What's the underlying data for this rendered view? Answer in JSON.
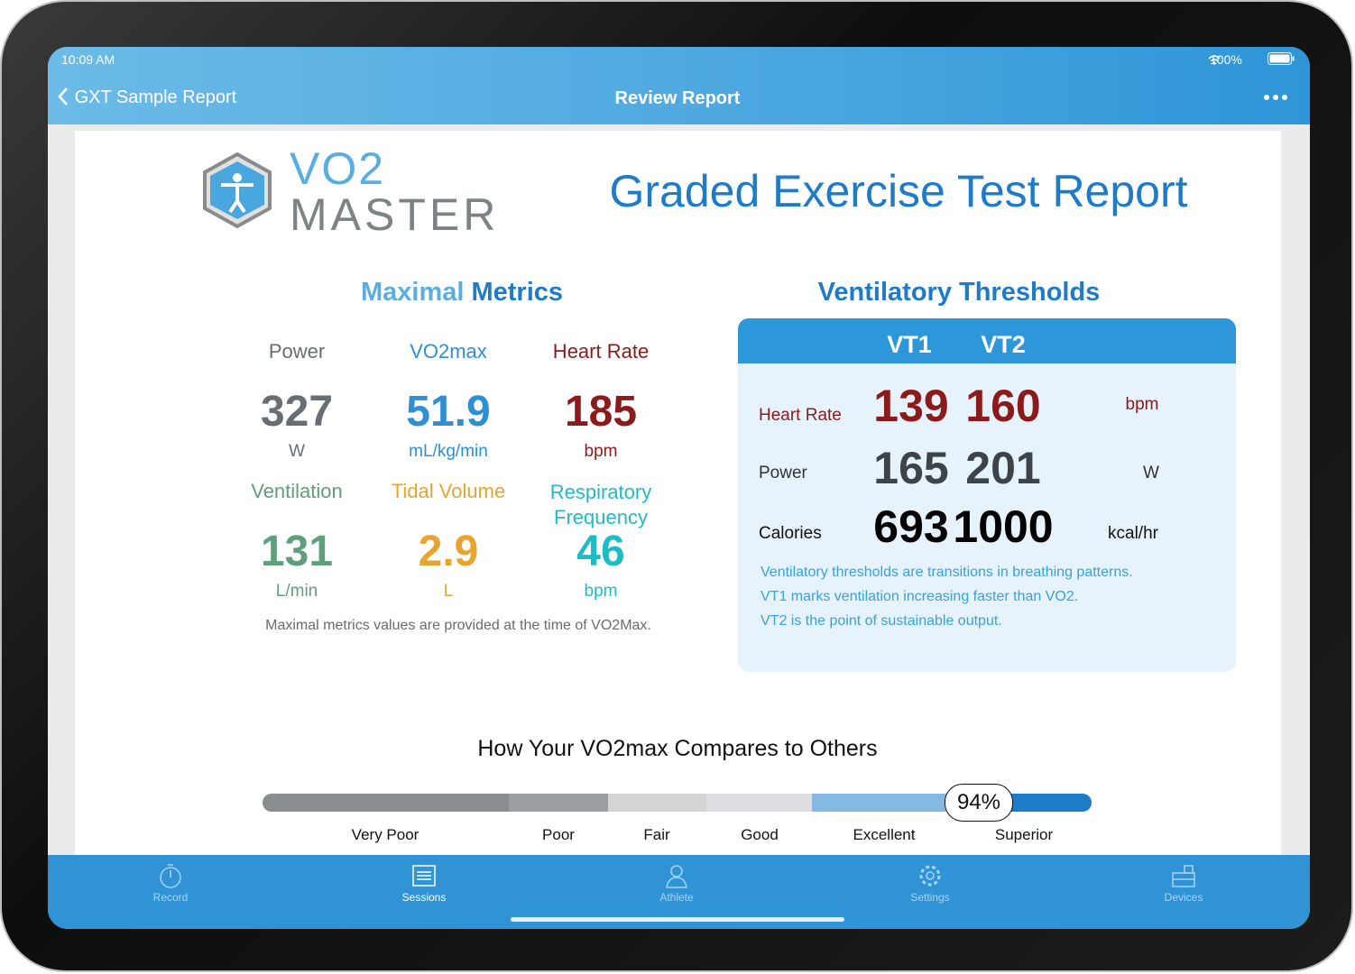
{
  "status_bar": {
    "time": "10:09 AM",
    "battery": "100%"
  },
  "nav_bar": {
    "back": "GXT Sample Report",
    "title": "Review Report"
  },
  "logo": {
    "line1": "VO2",
    "line2": "MASTER"
  },
  "report": {
    "title": "Graded Exercise Test Report"
  },
  "maximal_metrics": {
    "title_light": "Maximal",
    "title_dark": "Metrics",
    "metrics": [
      {
        "label": "Power",
        "value": 327,
        "unit": "W"
      },
      {
        "label": "VO2max",
        "value": 51.9,
        "unit": "mL/kg/min"
      },
      {
        "label": "Heart Rate",
        "value": 185,
        "unit": "bpm"
      },
      {
        "label": "Ventilation",
        "value": 131,
        "unit": "L/min"
      },
      {
        "label": "Tidal Volume",
        "value": 2.9,
        "unit": "L"
      },
      {
        "label": "Respiratory Frequency",
        "value": 46,
        "unit": "bpm"
      }
    ],
    "note": "Maximal metrics values are provided at the time of VO2Max."
  },
  "ventilatory_thresholds": {
    "title": "Ventilatory Thresholds",
    "headers": [
      "VT1",
      "VT2"
    ],
    "rows": [
      {
        "label": "Heart Rate",
        "values": [
          139,
          160
        ],
        "unit": "bpm"
      },
      {
        "label": "Power",
        "values": [
          165,
          201
        ],
        "unit": "W"
      },
      {
        "label": "Calories",
        "values": [
          693,
          1000
        ],
        "unit": "kcal/hr"
      }
    ],
    "notes": [
      "Ventilatory thresholds are transitions in breathing patterns.",
      "VT1 marks ventilation increasing faster than VO2.",
      "VT2 is the point of sustainable output."
    ]
  },
  "comparison": {
    "title": "How Your VO2max Compares to Others",
    "categories": [
      "Very Poor",
      "Poor",
      "Fair",
      "Good",
      "Excellent",
      "Superior"
    ],
    "percentile": "94%"
  },
  "tab_bar": {
    "tabs": [
      "Record",
      "Sessions",
      "Athlete",
      "Settings",
      "Devices"
    ]
  }
}
